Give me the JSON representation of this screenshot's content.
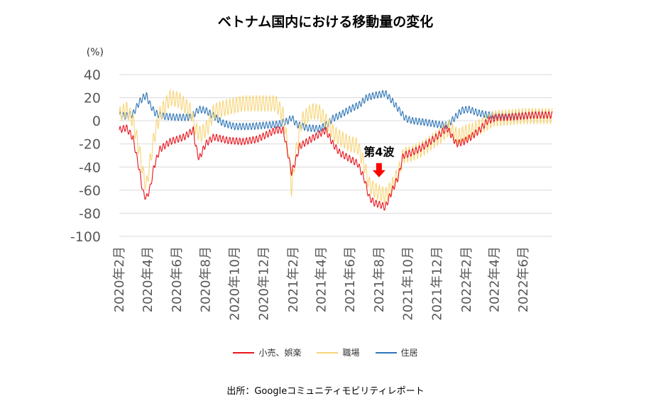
{
  "chart_data": {
    "type": "line",
    "title": "ベトナム国内における移動量の変化",
    "ylabel": "(%)",
    "ylim": [
      -100,
      40
    ],
    "yticks": [
      40,
      20,
      0,
      -20,
      -40,
      -60,
      -80,
      -100
    ],
    "ytick_labels": [
      "40",
      "20",
      "0",
      "-20",
      "-40",
      "-60",
      "-80",
      "-100"
    ],
    "x_start": "2020-02-15",
    "x_end": "2022-08-15",
    "xticks": [
      {
        "date": "2020-02-15",
        "label": "2020年2月"
      },
      {
        "date": "2020-04-15",
        "label": "2020年4月"
      },
      {
        "date": "2020-06-15",
        "label": "2020年6月"
      },
      {
        "date": "2020-08-15",
        "label": "2020年8月"
      },
      {
        "date": "2020-10-15",
        "label": "2020年10月"
      },
      {
        "date": "2020-12-15",
        "label": "2020年12月"
      },
      {
        "date": "2021-02-15",
        "label": "2021年2月"
      },
      {
        "date": "2021-04-15",
        "label": "2021年4月"
      },
      {
        "date": "2021-06-15",
        "label": "2021年6月"
      },
      {
        "date": "2021-08-15",
        "label": "2021年8月"
      },
      {
        "date": "2021-10-15",
        "label": "2021年10月"
      },
      {
        "date": "2021-12-15",
        "label": "2021年12月"
      },
      {
        "date": "2022-02-15",
        "label": "2022年2月"
      },
      {
        "date": "2022-04-15",
        "label": "2022年4月"
      },
      {
        "date": "2022-06-15",
        "label": "2022年6月"
      }
    ],
    "gridlines": true,
    "legend_position": "bottom",
    "series": [
      {
        "name": "小売、娯楽",
        "color": "#e8141c",
        "points": [
          [
            "2020-02-15",
            -8
          ],
          [
            "2020-03-01",
            -6
          ],
          [
            "2020-03-15",
            -15
          ],
          [
            "2020-03-28",
            -42
          ],
          [
            "2020-04-05",
            -62
          ],
          [
            "2020-04-12",
            -67
          ],
          [
            "2020-04-20",
            -58
          ],
          [
            "2020-04-28",
            -40
          ],
          [
            "2020-05-10",
            -25
          ],
          [
            "2020-06-01",
            -18
          ],
          [
            "2020-07-01",
            -14
          ],
          [
            "2020-07-20",
            -8
          ],
          [
            "2020-07-25",
            -22
          ],
          [
            "2020-08-01",
            -33
          ],
          [
            "2020-08-15",
            -20
          ],
          [
            "2020-09-01",
            -14
          ],
          [
            "2020-10-01",
            -17
          ],
          [
            "2020-11-01",
            -18
          ],
          [
            "2020-12-01",
            -16
          ],
          [
            "2021-01-10",
            -8
          ],
          [
            "2021-01-25",
            -8
          ],
          [
            "2021-02-05",
            -30
          ],
          [
            "2021-02-12",
            -45
          ],
          [
            "2021-02-20",
            -35
          ],
          [
            "2021-03-01",
            -22
          ],
          [
            "2021-03-20",
            -17
          ],
          [
            "2021-04-10",
            -12
          ],
          [
            "2021-04-25",
            -8
          ],
          [
            "2021-05-10",
            -20
          ],
          [
            "2021-05-25",
            -28
          ],
          [
            "2021-06-15",
            -33
          ],
          [
            "2021-07-01",
            -37
          ],
          [
            "2021-07-15",
            -50
          ],
          [
            "2021-07-25",
            -66
          ],
          [
            "2021-08-05",
            -71
          ],
          [
            "2021-08-20",
            -73
          ],
          [
            "2021-08-28",
            -75
          ],
          [
            "2021-09-10",
            -62
          ],
          [
            "2021-09-25",
            -48
          ],
          [
            "2021-10-05",
            -30
          ],
          [
            "2021-10-20",
            -28
          ],
          [
            "2021-11-10",
            -24
          ],
          [
            "2021-12-01",
            -18
          ],
          [
            "2021-12-20",
            -12
          ],
          [
            "2022-01-05",
            -6
          ],
          [
            "2022-01-25",
            -20
          ],
          [
            "2022-02-10",
            -18
          ],
          [
            "2022-02-25",
            -14
          ],
          [
            "2022-03-15",
            -8
          ],
          [
            "2022-04-01",
            0
          ],
          [
            "2022-04-20",
            3
          ],
          [
            "2022-05-10",
            3
          ],
          [
            "2022-06-10",
            4
          ],
          [
            "2022-07-10",
            5
          ],
          [
            "2022-08-15",
            5
          ]
        ]
      },
      {
        "name": "職場",
        "color": "#f7d57a",
        "points": [
          [
            "2020-02-15",
            5
          ],
          [
            "2020-03-01",
            10
          ],
          [
            "2020-03-15",
            0
          ],
          [
            "2020-03-28",
            -25
          ],
          [
            "2020-04-05",
            -45
          ],
          [
            "2020-04-12",
            -57
          ],
          [
            "2020-04-20",
            -35
          ],
          [
            "2020-04-28",
            -15
          ],
          [
            "2020-05-10",
            5
          ],
          [
            "2020-06-01",
            20
          ],
          [
            "2020-06-20",
            18
          ],
          [
            "2020-07-15",
            8
          ],
          [
            "2020-07-25",
            -8
          ],
          [
            "2020-08-05",
            -12
          ],
          [
            "2020-08-20",
            -5
          ],
          [
            "2020-09-01",
            8
          ],
          [
            "2020-10-01",
            12
          ],
          [
            "2020-11-01",
            15
          ],
          [
            "2020-12-01",
            15
          ],
          [
            "2021-01-10",
            15
          ],
          [
            "2021-01-25",
            5
          ],
          [
            "2021-02-05",
            -25
          ],
          [
            "2021-02-12",
            -60
          ],
          [
            "2021-02-20",
            -30
          ],
          [
            "2021-03-05",
            0
          ],
          [
            "2021-03-25",
            8
          ],
          [
            "2021-04-10",
            8
          ],
          [
            "2021-04-25",
            0
          ],
          [
            "2021-05-10",
            -10
          ],
          [
            "2021-05-25",
            -15
          ],
          [
            "2021-06-15",
            -20
          ],
          [
            "2021-07-01",
            -22
          ],
          [
            "2021-07-15",
            -38
          ],
          [
            "2021-07-25",
            -55
          ],
          [
            "2021-08-05",
            -60
          ],
          [
            "2021-08-20",
            -63
          ],
          [
            "2021-08-28",
            -65
          ],
          [
            "2021-09-10",
            -58
          ],
          [
            "2021-09-25",
            -45
          ],
          [
            "2021-10-05",
            -30
          ],
          [
            "2021-10-25",
            -28
          ],
          [
            "2021-11-15",
            -24
          ],
          [
            "2021-12-05",
            -18
          ],
          [
            "2021-12-25",
            -12
          ],
          [
            "2022-01-10",
            -6
          ],
          [
            "2022-01-28",
            -14
          ],
          [
            "2022-02-15",
            -10
          ],
          [
            "2022-03-05",
            -8
          ],
          [
            "2022-03-25",
            -3
          ],
          [
            "2022-04-15",
            2
          ],
          [
            "2022-05-15",
            3
          ],
          [
            "2022-06-15",
            4
          ],
          [
            "2022-07-15",
            4
          ],
          [
            "2022-08-15",
            4
          ]
        ]
      },
      {
        "name": "住居",
        "color": "#2e75b6",
        "points": [
          [
            "2020-02-15",
            5
          ],
          [
            "2020-03-01",
            4
          ],
          [
            "2020-03-15",
            6
          ],
          [
            "2020-03-28",
            16
          ],
          [
            "2020-04-05",
            20
          ],
          [
            "2020-04-12",
            22
          ],
          [
            "2020-04-20",
            14
          ],
          [
            "2020-04-30",
            7
          ],
          [
            "2020-05-15",
            4
          ],
          [
            "2020-06-15",
            3
          ],
          [
            "2020-07-15",
            3
          ],
          [
            "2020-08-01",
            10
          ],
          [
            "2020-08-15",
            9
          ],
          [
            "2020-09-01",
            4
          ],
          [
            "2020-09-20",
            -2
          ],
          [
            "2020-10-15",
            -5
          ],
          [
            "2020-11-15",
            -5
          ],
          [
            "2020-12-15",
            -4
          ],
          [
            "2021-01-15",
            -3
          ],
          [
            "2021-02-05",
            0
          ],
          [
            "2021-02-12",
            3
          ],
          [
            "2021-02-22",
            -3
          ],
          [
            "2021-03-15",
            -6
          ],
          [
            "2021-04-10",
            -7
          ],
          [
            "2021-04-25",
            -4
          ],
          [
            "2021-05-10",
            2
          ],
          [
            "2021-05-25",
            5
          ],
          [
            "2021-06-15",
            10
          ],
          [
            "2021-07-05",
            14
          ],
          [
            "2021-07-20",
            20
          ],
          [
            "2021-08-05",
            22
          ],
          [
            "2021-08-20",
            23
          ],
          [
            "2021-08-28",
            24
          ],
          [
            "2021-09-10",
            18
          ],
          [
            "2021-09-25",
            10
          ],
          [
            "2021-10-10",
            2
          ],
          [
            "2021-10-25",
            0
          ],
          [
            "2021-11-15",
            -1
          ],
          [
            "2021-12-15",
            -3
          ],
          [
            "2022-01-05",
            -4
          ],
          [
            "2022-01-20",
            2
          ],
          [
            "2022-02-05",
            9
          ],
          [
            "2022-02-20",
            10
          ],
          [
            "2022-03-10",
            7
          ],
          [
            "2022-04-01",
            5
          ],
          [
            "2022-05-01",
            5
          ],
          [
            "2022-06-01",
            5
          ],
          [
            "2022-07-01",
            5
          ],
          [
            "2022-08-15",
            5
          ]
        ]
      }
    ],
    "annotation": {
      "text": "第4波",
      "date": "2021-08-15",
      "value": -28,
      "arrow_color": "#ff0000"
    }
  },
  "source": "出所：Googleコミュニティモビリティレポート"
}
